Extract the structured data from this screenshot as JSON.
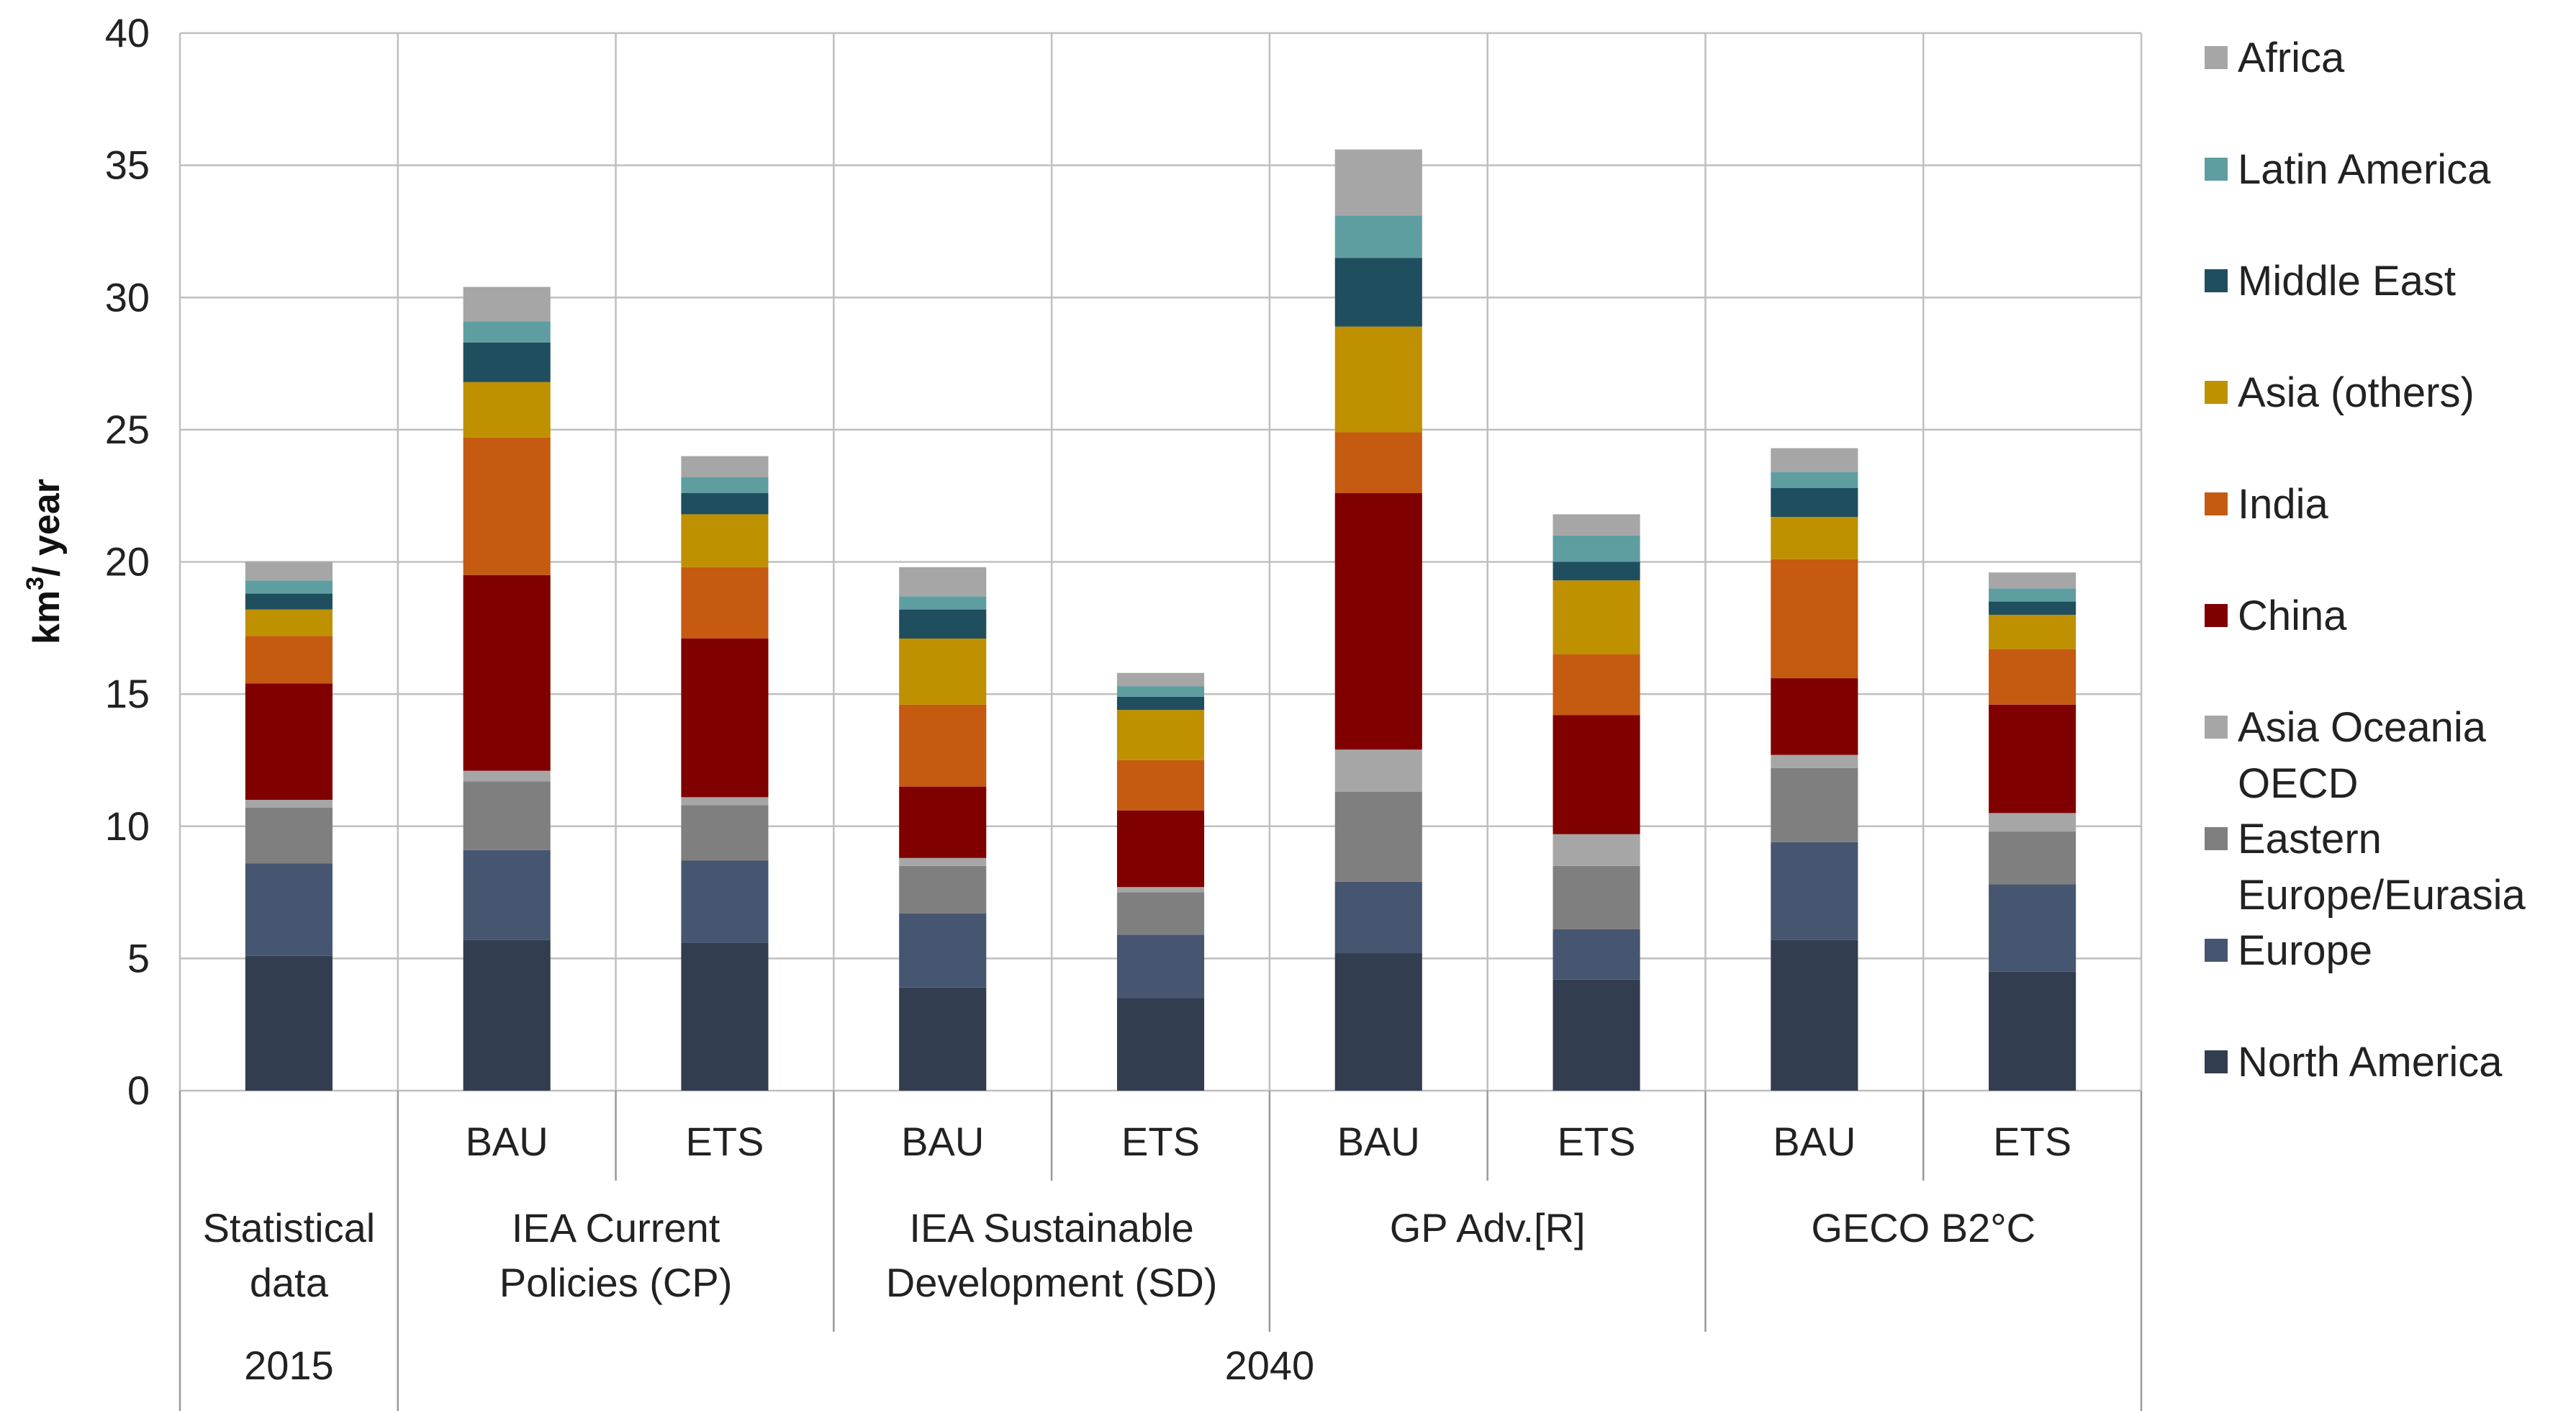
{
  "chart_data": {
    "type": "bar",
    "stacked": true,
    "ylabel": "km³/ year",
    "ylabel_main": "km",
    "ylabel_sup": "3",
    "ylabel_rest": "/ year",
    "ylim": [
      0,
      40
    ],
    "yticks": [
      0,
      5,
      10,
      15,
      20,
      25,
      30,
      35,
      40
    ],
    "grid": true,
    "legend_position": "right",
    "categories": [
      "",
      "BAU",
      "ETS",
      "BAU",
      "ETS",
      "BAU",
      "ETS",
      "BAU",
      "ETS"
    ],
    "groups": [
      {
        "label_lines": [
          "Statistical",
          "data"
        ],
        "span": [
          0,
          0
        ]
      },
      {
        "label_lines": [
          "IEA Current",
          "Policies (CP)"
        ],
        "span": [
          1,
          2
        ]
      },
      {
        "label_lines": [
          "IEA Sustainable",
          "Development (SD)"
        ],
        "span": [
          3,
          4
        ]
      },
      {
        "label_lines": [
          "GP Adv.[R]"
        ],
        "span": [
          5,
          6
        ]
      },
      {
        "label_lines": [
          "GECO B2°C"
        ],
        "span": [
          7,
          8
        ]
      }
    ],
    "years": [
      {
        "label": "2015",
        "span": [
          0,
          0
        ]
      },
      {
        "label": "2040",
        "span": [
          1,
          8
        ]
      }
    ],
    "series": [
      {
        "name": "North America",
        "color": "#323d50",
        "values": [
          5.1,
          5.7,
          5.6,
          3.9,
          3.5,
          5.2,
          4.2,
          5.7,
          4.5
        ]
      },
      {
        "name": "Europe",
        "color": "#465670",
        "values": [
          3.5,
          3.4,
          3.1,
          2.8,
          2.4,
          2.7,
          1.9,
          3.7,
          3.3
        ]
      },
      {
        "name": "Eastern Europe/Eurasia",
        "label_lines": [
          "Eastern",
          "Europe/Eurasia"
        ],
        "color": "#7f7f7f",
        "values": [
          2.1,
          2.6,
          2.1,
          1.8,
          1.6,
          3.4,
          2.4,
          2.8,
          2.0
        ]
      },
      {
        "name": "Asia Oceania OECD",
        "label_lines": [
          "Asia Oceania",
          "OECD"
        ],
        "color": "#a6a6a6",
        "values": [
          0.3,
          0.4,
          0.3,
          0.3,
          0.2,
          1.6,
          1.2,
          0.5,
          0.7
        ]
      },
      {
        "name": "China",
        "color": "#800000",
        "values": [
          4.4,
          7.4,
          6.0,
          2.7,
          2.9,
          9.7,
          4.5,
          2.9,
          4.1
        ]
      },
      {
        "name": "India",
        "color": "#c55a11",
        "values": [
          1.8,
          5.2,
          2.7,
          3.1,
          1.9,
          2.3,
          2.3,
          4.5,
          2.1
        ]
      },
      {
        "name": "Asia (others)",
        "color": "#bf9000",
        "values": [
          1.0,
          2.1,
          2.0,
          2.5,
          1.9,
          4.0,
          2.8,
          1.6,
          1.3
        ]
      },
      {
        "name": "Middle East",
        "color": "#1f4e5f",
        "values": [
          0.6,
          1.5,
          0.8,
          1.1,
          0.5,
          2.6,
          0.7,
          1.1,
          0.5
        ]
      },
      {
        "name": "Latin America",
        "color": "#5f9ea0",
        "values": [
          0.5,
          0.8,
          0.6,
          0.5,
          0.4,
          1.6,
          1.0,
          0.6,
          0.5
        ]
      },
      {
        "name": "Africa",
        "color": "#a6a6a6",
        "values": [
          0.7,
          1.3,
          0.8,
          1.1,
          0.5,
          2.5,
          0.8,
          0.9,
          0.6
        ]
      }
    ]
  }
}
